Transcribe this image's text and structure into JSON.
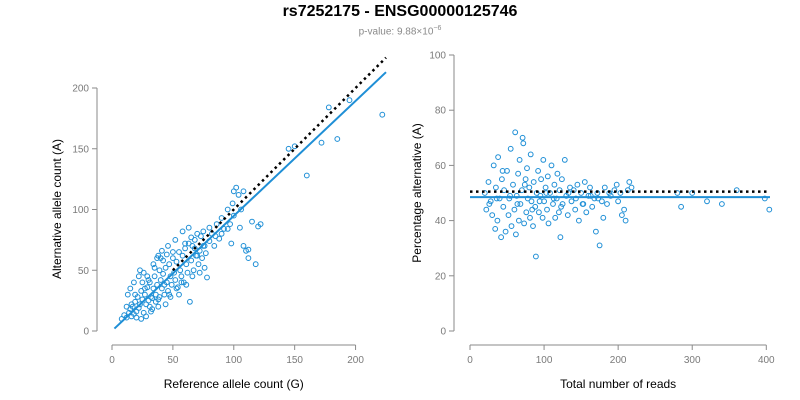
{
  "title": "rs7252175 - ENSG00000125746",
  "subtitle": {
    "prefix": "p-value: 9.88×10",
    "exponent": "−6"
  },
  "colors": {
    "points": "#1f8fd6",
    "fit": "#1f8fd6",
    "reference": "#000000",
    "axis": "#8a8a8a"
  },
  "chart_data": [
    {
      "type": "scatter",
      "xlabel": "Reference allele count (G)",
      "ylabel": "Alternative allele count (A)",
      "xlim": [
        0,
        225
      ],
      "ylim": [
        0,
        200
      ],
      "xticks": [
        0,
        50,
        100,
        150,
        200
      ],
      "yticks": [
        0,
        50,
        100,
        150,
        200
      ],
      "fit_line": {
        "x": [
          2,
          225
        ],
        "y": [
          2,
          213
        ],
        "style": "solid"
      },
      "reference_line": {
        "x": [
          50,
          225
        ],
        "y": [
          50,
          225
        ],
        "style": "dotted"
      },
      "points": [
        [
          8,
          10
        ],
        [
          10,
          13
        ],
        [
          12,
          11
        ],
        [
          14,
          15
        ],
        [
          15,
          18
        ],
        [
          16,
          12
        ],
        [
          17,
          20
        ],
        [
          18,
          14
        ],
        [
          19,
          24
        ],
        [
          20,
          16
        ],
        [
          21,
          28
        ],
        [
          22,
          19
        ],
        [
          23,
          22
        ],
        [
          24,
          33
        ],
        [
          25,
          26
        ],
        [
          26,
          15
        ],
        [
          27,
          30
        ],
        [
          28,
          22
        ],
        [
          29,
          36
        ],
        [
          30,
          25
        ],
        [
          31,
          40
        ],
        [
          32,
          28
        ],
        [
          33,
          18
        ],
        [
          34,
          35
        ],
        [
          35,
          45
        ],
        [
          36,
          30
        ],
        [
          37,
          38
        ],
        [
          38,
          26
        ],
        [
          39,
          50
        ],
        [
          40,
          42
        ],
        [
          41,
          35
        ],
        [
          42,
          47
        ],
        [
          43,
          30
        ],
        [
          44,
          52
        ],
        [
          45,
          40
        ],
        [
          46,
          33
        ],
        [
          47,
          55
        ],
        [
          48,
          45
        ],
        [
          49,
          38
        ],
        [
          50,
          60
        ],
        [
          51,
          48
        ],
        [
          52,
          42
        ],
        [
          53,
          57
        ],
        [
          54,
          36
        ],
        [
          55,
          65
        ],
        [
          56,
          50
        ],
        [
          57,
          45
        ],
        [
          58,
          62
        ],
        [
          59,
          40
        ],
        [
          60,
          68
        ],
        [
          61,
          55
        ],
        [
          62,
          48
        ],
        [
          63,
          72
        ],
        [
          64,
          24
        ],
        [
          65,
          58
        ],
        [
          66,
          70
        ],
        [
          67,
          50
        ],
        [
          68,
          75
        ],
        [
          69,
          62
        ],
        [
          70,
          80
        ],
        [
          71,
          55
        ],
        [
          72,
          66
        ],
        [
          73,
          78
        ],
        [
          74,
          60
        ],
        [
          75,
          82
        ],
        [
          76,
          70
        ],
        [
          77,
          64
        ],
        [
          78,
          44
        ],
        [
          80,
          74
        ],
        [
          82,
          80
        ],
        [
          84,
          70
        ],
        [
          86,
          88
        ],
        [
          88,
          76
        ],
        [
          90,
          93
        ],
        [
          92,
          84
        ],
        [
          95,
          100
        ],
        [
          97,
          88
        ],
        [
          99,
          105
        ],
        [
          100,
          95
        ],
        [
          102,
          118
        ],
        [
          104,
          112
        ],
        [
          106,
          100
        ],
        [
          108,
          115
        ],
        [
          110,
          66
        ],
        [
          112,
          67
        ],
        [
          115,
          90
        ],
        [
          118,
          55
        ],
        [
          120,
          86
        ],
        [
          122,
          88
        ],
        [
          145,
          150
        ],
        [
          150,
          152
        ],
        [
          160,
          128
        ],
        [
          172,
          155
        ],
        [
          178,
          184
        ],
        [
          185,
          158
        ],
        [
          195,
          190
        ],
        [
          222,
          178
        ],
        [
          13,
          30
        ],
        [
          15,
          35
        ],
        [
          18,
          40
        ],
        [
          22,
          45
        ],
        [
          23,
          50
        ],
        [
          26,
          48
        ],
        [
          30,
          42
        ],
        [
          34,
          55
        ],
        [
          38,
          62
        ],
        [
          42,
          58
        ],
        [
          46,
          70
        ],
        [
          52,
          75
        ],
        [
          58,
          82
        ],
        [
          63,
          85
        ],
        [
          68,
          68
        ],
        [
          55,
          30
        ],
        [
          48,
          28
        ],
        [
          44,
          22
        ],
        [
          38,
          20
        ],
        [
          32,
          16
        ],
        [
          28,
          12
        ],
        [
          24,
          10
        ],
        [
          20,
          11
        ],
        [
          35,
          52
        ],
        [
          40,
          60
        ],
        [
          45,
          63
        ],
        [
          50,
          65
        ],
        [
          60,
          72
        ],
        [
          65,
          77
        ],
        [
          70,
          62
        ],
        [
          75,
          70
        ],
        [
          80,
          85
        ],
        [
          85,
          78
        ],
        [
          90,
          80
        ],
        [
          95,
          84
        ],
        [
          100,
          115
        ],
        [
          105,
          85
        ],
        [
          108,
          70
        ],
        [
          112,
          60
        ],
        [
          98,
          72
        ],
        [
          33,
          27
        ],
        [
          36,
          24
        ],
        [
          27,
          35
        ],
        [
          31,
          20
        ],
        [
          39,
          28
        ],
        [
          43,
          38
        ],
        [
          47,
          30
        ],
        [
          53,
          35
        ],
        [
          57,
          40
        ],
        [
          61,
          38
        ],
        [
          66,
          45
        ],
        [
          72,
          48
        ],
        [
          76,
          52
        ],
        [
          12,
          20
        ],
        [
          16,
          22
        ],
        [
          19,
          30
        ],
        [
          25,
          40
        ],
        [
          29,
          45
        ],
        [
          37,
          60
        ],
        [
          41,
          66
        ]
      ]
    },
    {
      "type": "scatter",
      "xlabel": "Total number of reads",
      "ylabel": "Percentage alternative (A)",
      "xlim": [
        0,
        405
      ],
      "ylim": [
        0,
        100
      ],
      "xticks": [
        0,
        100,
        200,
        300,
        400
      ],
      "yticks": [
        0,
        20,
        40,
        60,
        80,
        100
      ],
      "fit_line": {
        "x": [
          0,
          405
        ],
        "y": [
          48.5,
          48.5
        ],
        "style": "solid"
      },
      "reference_line": {
        "x": [
          0,
          405
        ],
        "y": [
          50.5,
          50.5
        ],
        "style": "dotted"
      },
      "points": [
        [
          20,
          50
        ],
        [
          22,
          44
        ],
        [
          25,
          54
        ],
        [
          28,
          47
        ],
        [
          30,
          42
        ],
        [
          32,
          60
        ],
        [
          34,
          37
        ],
        [
          35,
          52
        ],
        [
          37,
          40
        ],
        [
          38,
          63
        ],
        [
          40,
          48
        ],
        [
          42,
          34
        ],
        [
          43,
          55
        ],
        [
          45,
          45
        ],
        [
          46,
          51
        ],
        [
          48,
          36
        ],
        [
          50,
          58
        ],
        [
          52,
          42
        ],
        [
          53,
          48
        ],
        [
          55,
          66
        ],
        [
          56,
          38
        ],
        [
          58,
          53
        ],
        [
          60,
          44
        ],
        [
          61,
          72
        ],
        [
          62,
          35
        ],
        [
          63,
          49
        ],
        [
          65,
          57
        ],
        [
          66,
          40
        ],
        [
          67,
          62
        ],
        [
          68,
          46
        ],
        [
          70,
          51
        ],
        [
          71,
          70
        ],
        [
          72,
          68
        ],
        [
          73,
          39
        ],
        [
          75,
          55
        ],
        [
          76,
          43
        ],
        [
          77,
          59
        ],
        [
          78,
          48
        ],
        [
          80,
          52
        ],
        [
          81,
          41
        ],
        [
          82,
          64
        ],
        [
          83,
          47
        ],
        [
          85,
          38
        ],
        [
          86,
          54
        ],
        [
          88,
          45
        ],
        [
          89,
          27
        ],
        [
          90,
          50
        ],
        [
          92,
          58
        ],
        [
          93,
          43
        ],
        [
          95,
          49
        ],
        [
          96,
          55
        ],
        [
          98,
          41
        ],
        [
          99,
          62
        ],
        [
          100,
          47
        ],
        [
          102,
          52
        ],
        [
          104,
          44
        ],
        [
          105,
          56
        ],
        [
          106,
          39
        ],
        [
          108,
          50
        ],
        [
          110,
          60
        ],
        [
          112,
          46
        ],
        [
          114,
          53
        ],
        [
          115,
          41
        ],
        [
          117,
          48
        ],
        [
          118,
          57
        ],
        [
          120,
          43
        ],
        [
          121,
          51
        ],
        [
          122,
          34
        ],
        [
          124,
          55
        ],
        [
          125,
          46
        ],
        [
          128,
          62
        ],
        [
          130,
          49
        ],
        [
          132,
          42
        ],
        [
          135,
          52
        ],
        [
          137,
          47
        ],
        [
          140,
          51
        ],
        [
          142,
          44
        ],
        [
          145,
          53
        ],
        [
          147,
          40
        ],
        [
          150,
          50
        ],
        [
          152,
          46
        ],
        [
          155,
          54
        ],
        [
          157,
          43
        ],
        [
          160,
          49
        ],
        [
          162,
          52
        ],
        [
          165,
          45
        ],
        [
          168,
          48
        ],
        [
          170,
          36
        ],
        [
          172,
          50
        ],
        [
          175,
          31
        ],
        [
          178,
          47
        ],
        [
          180,
          41
        ],
        [
          182,
          52
        ],
        [
          185,
          46
        ],
        [
          188,
          50
        ],
        [
          190,
          49
        ],
        [
          195,
          51
        ],
        [
          198,
          53
        ],
        [
          200,
          47
        ],
        [
          203,
          50
        ],
        [
          205,
          42
        ],
        [
          208,
          44
        ],
        [
          210,
          40
        ],
        [
          213,
          51
        ],
        [
          215,
          54
        ],
        [
          218,
          52
        ],
        [
          280,
          50
        ],
        [
          285,
          45
        ],
        [
          300,
          50
        ],
        [
          320,
          47
        ],
        [
          340,
          46
        ],
        [
          360,
          51
        ],
        [
          398,
          48
        ],
        [
          404,
          44
        ],
        [
          26,
          46
        ],
        [
          36,
          48
        ],
        [
          44,
          58
        ],
        [
          54,
          49
        ],
        [
          64,
          46
        ],
        [
          74,
          53
        ],
        [
          84,
          44
        ],
        [
          94,
          47
        ],
        [
          103,
          50
        ],
        [
          113,
          48
        ],
        [
          123,
          45
        ],
        [
          133,
          50
        ],
        [
          143,
          48
        ],
        [
          153,
          46
        ],
        [
          163,
          49
        ],
        [
          173,
          48
        ]
      ]
    }
  ]
}
